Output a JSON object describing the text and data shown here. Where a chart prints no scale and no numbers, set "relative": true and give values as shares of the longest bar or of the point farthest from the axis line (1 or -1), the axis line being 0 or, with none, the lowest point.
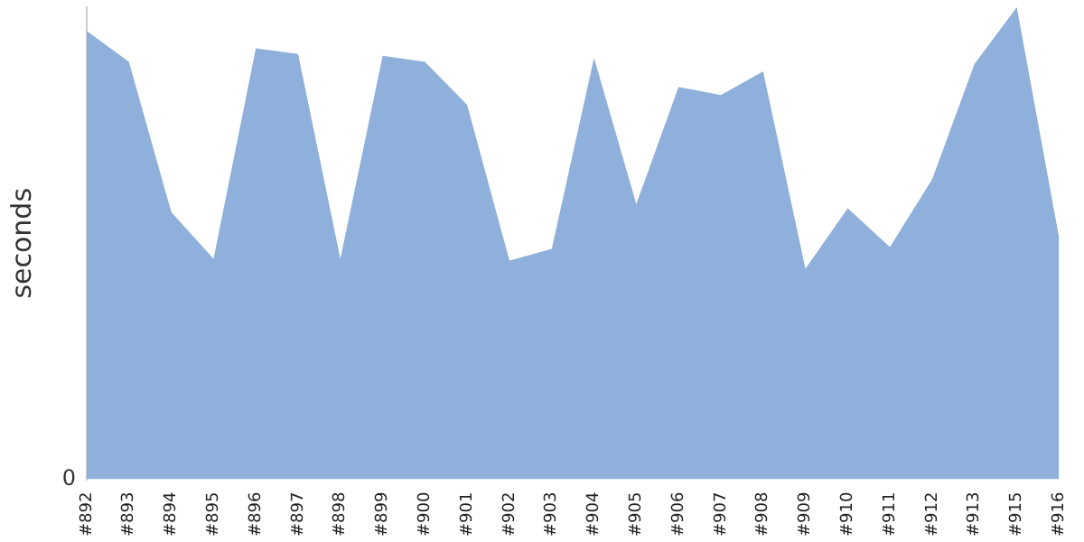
{
  "chart_data": {
    "type": "area",
    "ylabel": "seconds",
    "relative": true,
    "annotations": [
      "0"
    ],
    "legend": false,
    "categories": [
      "#892",
      "#893",
      "#894",
      "#895",
      "#896",
      "#897",
      "#898",
      "#899",
      "#900",
      "#901",
      "#902",
      "#903",
      "#904",
      "#905",
      "#906",
      "#907",
      "#908",
      "#909",
      "#910",
      "#911",
      "#912",
      "#913",
      "#915",
      "#916"
    ],
    "series": [
      {
        "color": "#8eb0db",
        "values": [
          0.95,
          0.884,
          0.566,
          0.467,
          0.913,
          0.901,
          0.467,
          0.897,
          0.884,
          0.793,
          0.463,
          0.488,
          0.893,
          0.583,
          0.831,
          0.814,
          0.864,
          0.446,
          0.574,
          0.492,
          0.636,
          0.88,
          1,
          0.512
        ]
      }
    ]
  }
}
